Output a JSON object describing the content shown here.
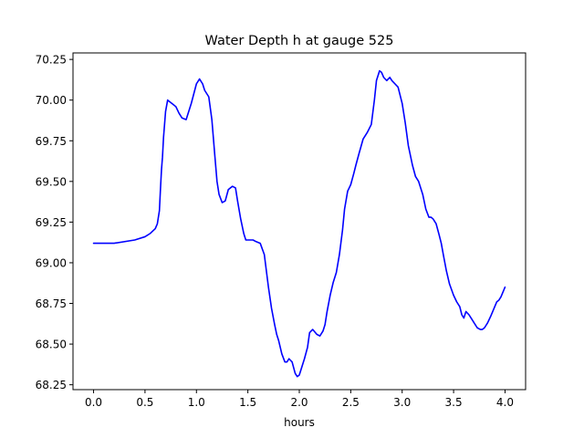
{
  "chart_data": {
    "type": "line",
    "title": "Water Depth h at gauge 525",
    "xlabel": "hours",
    "ylabel": "",
    "xlim": [
      -0.2,
      4.2
    ],
    "ylim": [
      68.22,
      70.29
    ],
    "xticks": [
      0.0,
      0.5,
      1.0,
      1.5,
      2.0,
      2.5,
      3.0,
      3.5,
      4.0
    ],
    "xtick_labels": [
      "0.0",
      "0.5",
      "1.0",
      "1.5",
      "2.0",
      "2.5",
      "3.0",
      "3.5",
      "4.0"
    ],
    "yticks": [
      68.25,
      68.5,
      68.75,
      69.0,
      69.25,
      69.5,
      69.75,
      70.0,
      70.25
    ],
    "ytick_labels": [
      "68.25",
      "68.50",
      "68.75",
      "69.00",
      "69.25",
      "69.50",
      "69.75",
      "70.00",
      "70.25"
    ],
    "grid": false,
    "series": [
      {
        "color": "#0000ff",
        "x": [
          0.0,
          0.2,
          0.4,
          0.5,
          0.55,
          0.6,
          0.62,
          0.64,
          0.65,
          0.66,
          0.67,
          0.68,
          0.69,
          0.7,
          0.72,
          0.74,
          0.76,
          0.8,
          0.83,
          0.86,
          0.9,
          0.95,
          1.0,
          1.03,
          1.06,
          1.08,
          1.12,
          1.15,
          1.18,
          1.2,
          1.22,
          1.25,
          1.28,
          1.31,
          1.35,
          1.38,
          1.4,
          1.43,
          1.46,
          1.48,
          1.5,
          1.52,
          1.55,
          1.58,
          1.62,
          1.66,
          1.7,
          1.73,
          1.76,
          1.78,
          1.8,
          1.83,
          1.86,
          1.88,
          1.9,
          1.93,
          1.96,
          1.98,
          2.0,
          2.02,
          2.05,
          2.08,
          2.1,
          2.13,
          2.17,
          2.2,
          2.23,
          2.25,
          2.27,
          2.3,
          2.33,
          2.36,
          2.39,
          2.42,
          2.44,
          2.47,
          2.5,
          2.53,
          2.55,
          2.58,
          2.62,
          2.66,
          2.7,
          2.73,
          2.75,
          2.78,
          2.8,
          2.82,
          2.85,
          2.88,
          2.9,
          2.93,
          2.96,
          3.0,
          3.03,
          3.06,
          3.1,
          3.13,
          3.16,
          3.2,
          3.23,
          3.26,
          3.28,
          3.3,
          3.33,
          3.36,
          3.38,
          3.4,
          3.43,
          3.46,
          3.5,
          3.53,
          3.56,
          3.58,
          3.6,
          3.62,
          3.65,
          3.68,
          3.7,
          3.73,
          3.76,
          3.78,
          3.8,
          3.83,
          3.86,
          3.88,
          3.9,
          3.92,
          3.94,
          3.96,
          3.98,
          4.0
        ],
        "y": [
          69.12,
          69.12,
          69.14,
          69.16,
          69.18,
          69.21,
          69.24,
          69.32,
          69.45,
          69.57,
          69.65,
          69.77,
          69.85,
          69.93,
          70.0,
          69.99,
          69.98,
          69.96,
          69.92,
          69.89,
          69.88,
          69.98,
          70.1,
          70.13,
          70.1,
          70.06,
          70.02,
          69.88,
          69.65,
          69.5,
          69.42,
          69.37,
          69.38,
          69.45,
          69.47,
          69.46,
          69.38,
          69.27,
          69.18,
          69.14,
          69.14,
          69.14,
          69.14,
          69.13,
          69.12,
          69.05,
          68.85,
          68.72,
          68.62,
          68.56,
          68.52,
          68.44,
          68.39,
          68.39,
          68.41,
          68.39,
          68.32,
          68.3,
          68.31,
          68.35,
          68.41,
          68.48,
          68.57,
          68.59,
          68.56,
          68.55,
          68.58,
          68.62,
          68.7,
          68.8,
          68.88,
          68.94,
          69.05,
          69.2,
          69.33,
          69.44,
          69.48,
          69.55,
          69.6,
          69.67,
          69.76,
          69.8,
          69.85,
          70.0,
          70.12,
          70.18,
          70.17,
          70.14,
          70.12,
          70.14,
          70.12,
          70.1,
          70.08,
          69.98,
          69.86,
          69.72,
          69.6,
          69.53,
          69.5,
          69.42,
          69.33,
          69.28,
          69.28,
          69.27,
          69.24,
          69.17,
          69.12,
          69.05,
          68.95,
          68.87,
          68.8,
          68.76,
          68.73,
          68.68,
          68.66,
          68.7,
          68.68,
          68.65,
          68.63,
          68.6,
          68.59,
          68.59,
          68.6,
          68.63,
          68.67,
          68.7,
          68.73,
          68.76,
          68.77,
          68.79,
          68.82,
          68.85
        ]
      }
    ]
  }
}
